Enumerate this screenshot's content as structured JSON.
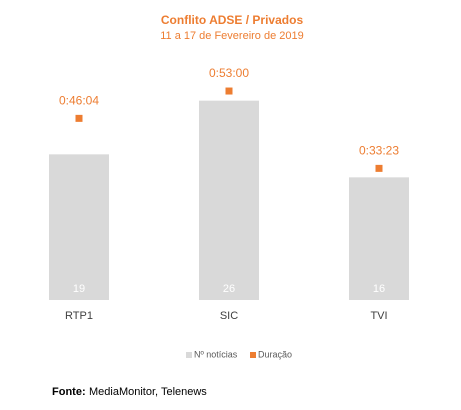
{
  "chart_data": {
    "type": "bar",
    "title": "Conflito ADSE / Privados",
    "subtitle": "11 a 17 de Fevereiro de 2019",
    "categories": [
      "RTP1",
      "SIC",
      "TVI"
    ],
    "series": [
      {
        "name": "Nº notícias",
        "type": "bar",
        "color": "#d9d9d9",
        "values": [
          19,
          26,
          16
        ]
      },
      {
        "name": "Duração",
        "type": "scatter",
        "color": "#ed7d31",
        "axis": "y2",
        "values": [
          2764,
          3180,
          2003
        ],
        "value_labels": [
          "0:46:04",
          "0:53:00",
          "0:33:23"
        ]
      }
    ],
    "ylim": [
      0,
      30
    ],
    "y2lim": [
      0,
      3500
    ],
    "grid": false,
    "legend": "bottom",
    "source_label": "Fonte:",
    "source": "MediaMonitor, Telenews"
  }
}
